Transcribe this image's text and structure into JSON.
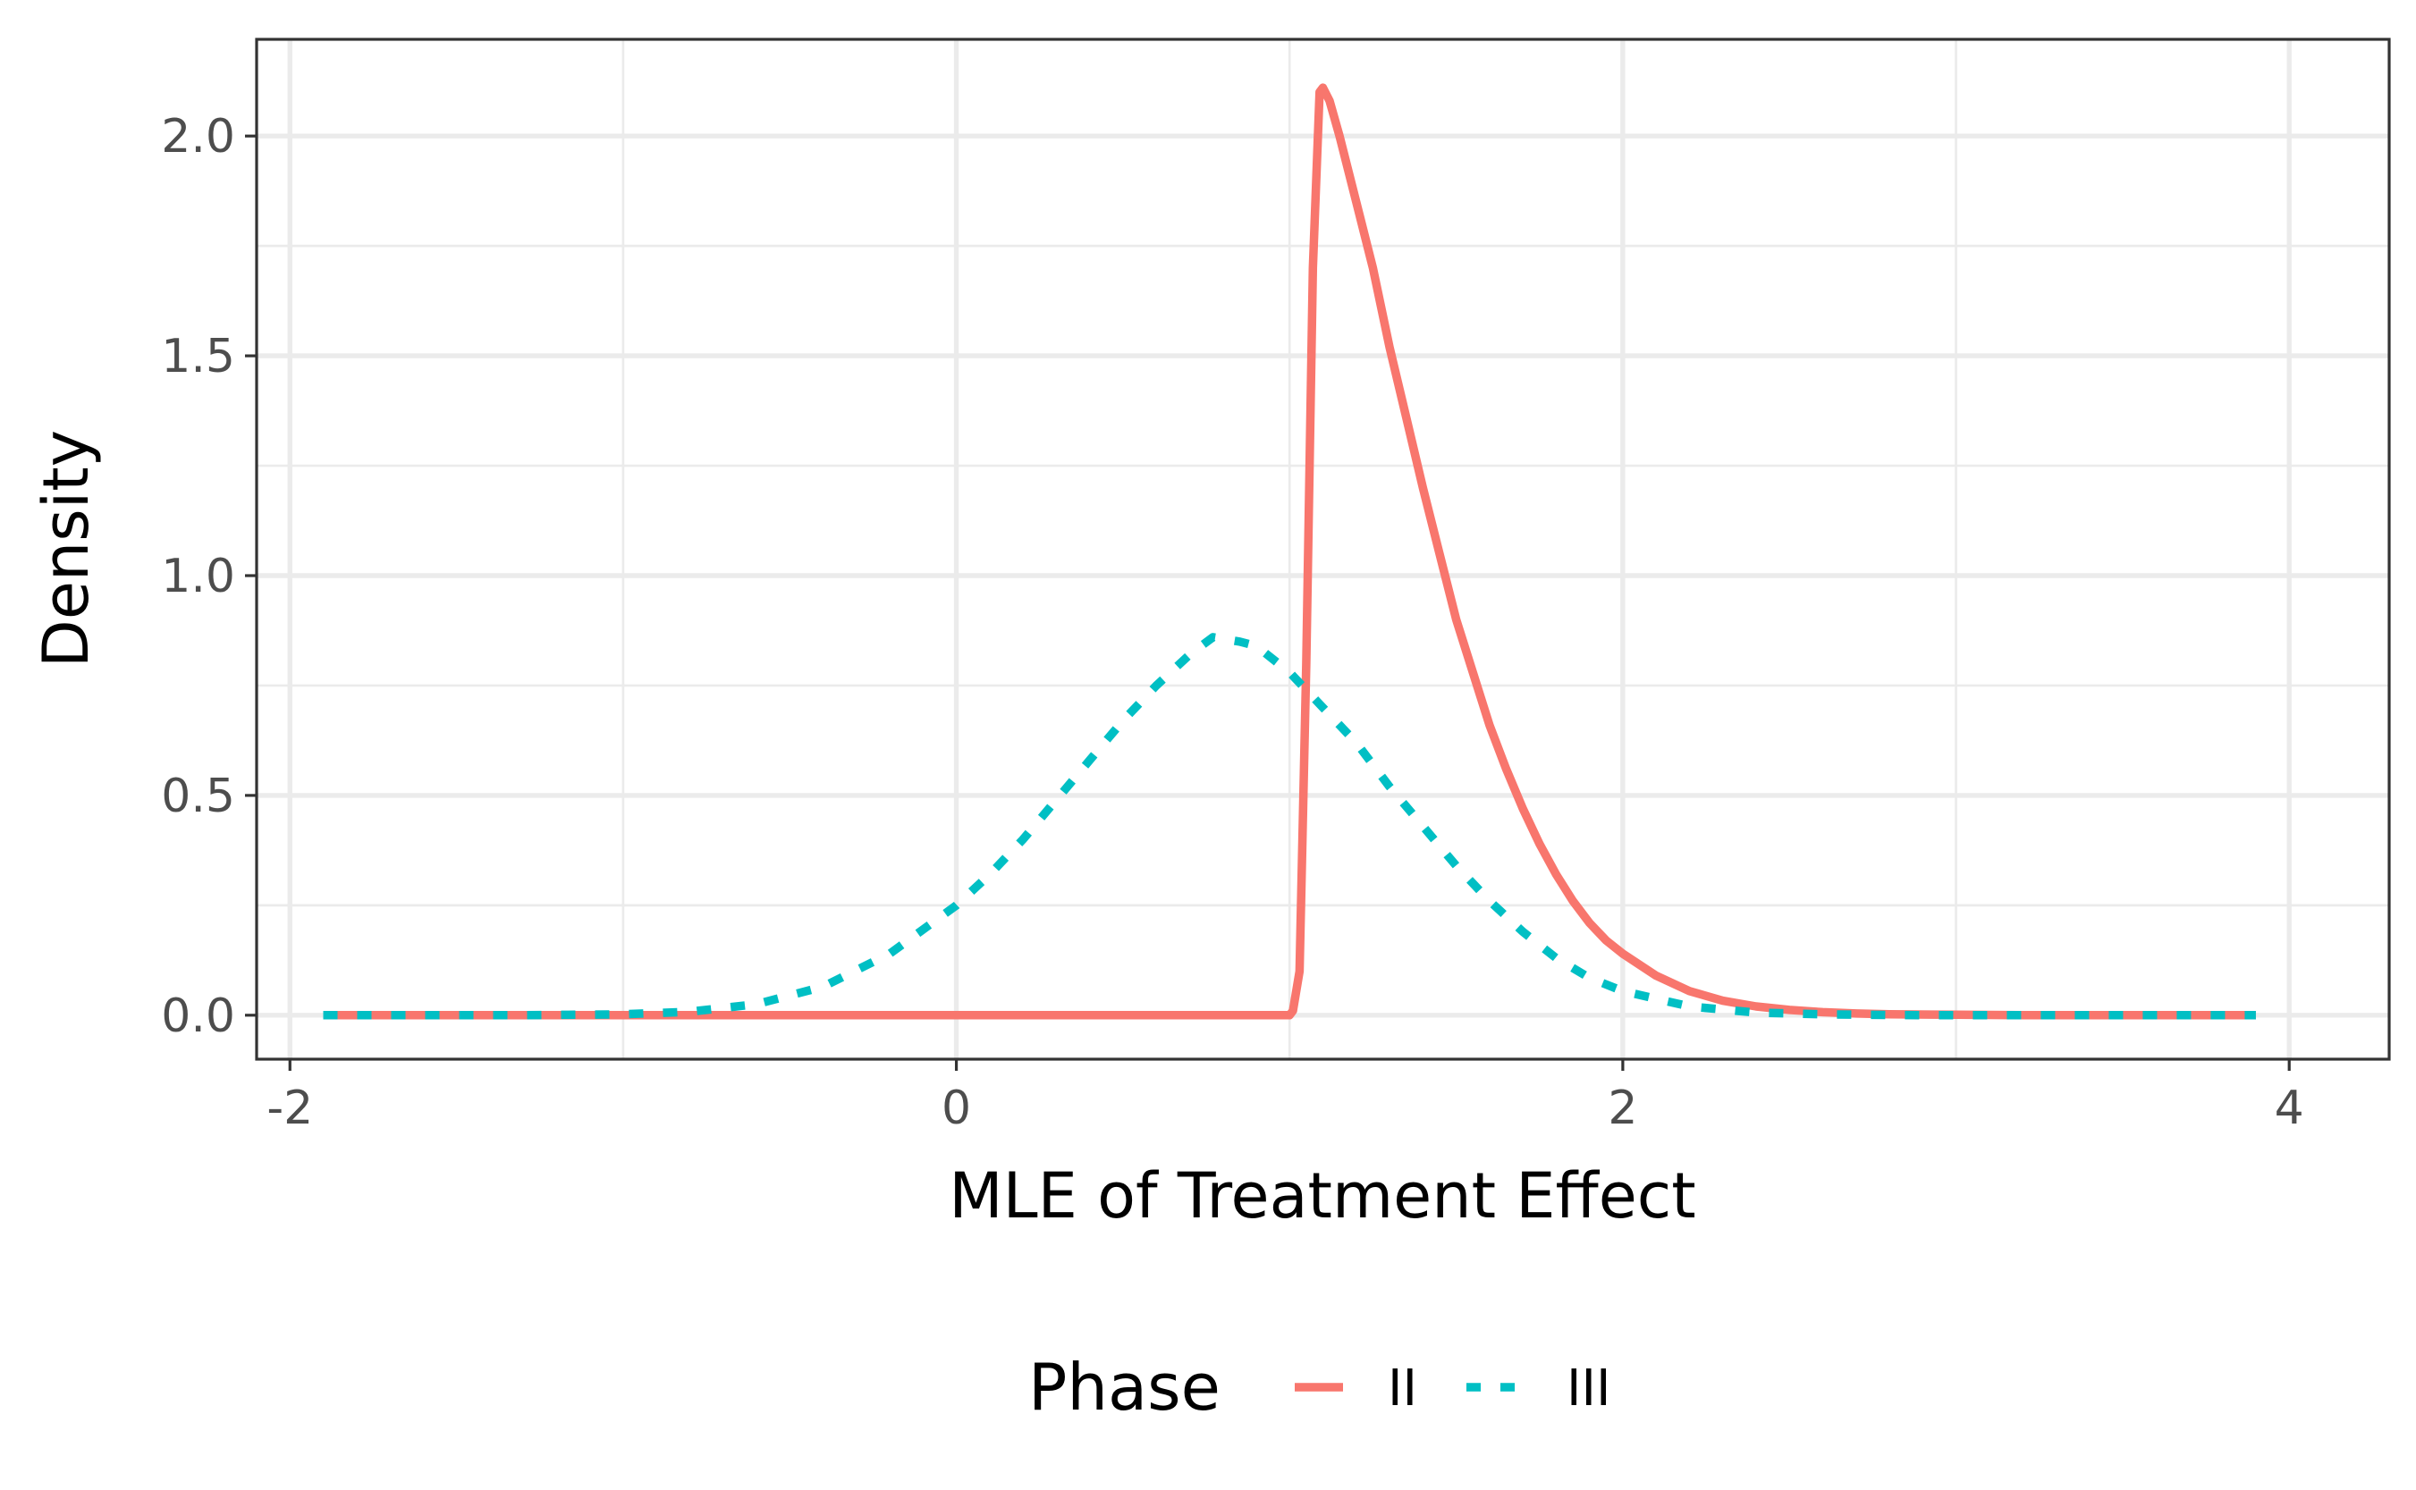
{
  "chart_data": {
    "type": "line",
    "title": "",
    "xlabel": "MLE of Treatment Effect",
    "ylabel": "Density",
    "xlim": [
      -2.1,
      4.3
    ],
    "ylim": [
      -0.1,
      2.22
    ],
    "x_ticks": [
      -2,
      0,
      2,
      4
    ],
    "x_tick_labels": [
      "-2",
      "0",
      "2",
      "4"
    ],
    "x_minor_ticks": [
      -1,
      1,
      3
    ],
    "y_ticks": [
      0.0,
      0.5,
      1.0,
      1.5,
      2.0
    ],
    "y_tick_labels": [
      "0.0",
      "0.5",
      "1.0",
      "1.5",
      "2.0"
    ],
    "y_minor_ticks": [
      0.25,
      0.75,
      1.25,
      1.75
    ],
    "grid": true,
    "legend": {
      "title": "Phase",
      "position": "bottom"
    },
    "series": [
      {
        "name": "II",
        "color": "#F8766D",
        "linetype": "solid",
        "x": [
          -1.9,
          -1.0,
          0.0,
          0.9,
          1.0,
          1.01,
          1.03,
          1.05,
          1.07,
          1.09,
          1.1,
          1.12,
          1.15,
          1.2,
          1.25,
          1.3,
          1.35,
          1.4,
          1.45,
          1.5,
          1.55,
          1.6,
          1.65,
          1.7,
          1.75,
          1.8,
          1.85,
          1.9,
          1.95,
          2.0,
          2.1,
          2.2,
          2.3,
          2.4,
          2.5,
          2.6,
          2.7,
          2.8,
          3.0,
          3.2,
          3.5,
          3.9
        ],
        "y": [
          0.0,
          0.0,
          0.0,
          0.0,
          0.0,
          0.01,
          0.1,
          0.8,
          1.7,
          2.1,
          2.11,
          2.08,
          2.0,
          1.85,
          1.7,
          1.52,
          1.36,
          1.2,
          1.05,
          0.9,
          0.78,
          0.66,
          0.56,
          0.47,
          0.39,
          0.32,
          0.26,
          0.21,
          0.17,
          0.14,
          0.09,
          0.055,
          0.033,
          0.02,
          0.012,
          0.007,
          0.004,
          0.002,
          0.001,
          0.0,
          0.0,
          0.0
        ]
      },
      {
        "name": "III",
        "color": "#00BFC4",
        "linetype": "dashed",
        "x": [
          -1.9,
          -1.6,
          -1.3,
          -1.0,
          -0.8,
          -0.6,
          -0.4,
          -0.2,
          0.0,
          0.1,
          0.2,
          0.3,
          0.4,
          0.5,
          0.6,
          0.7,
          0.77,
          0.85,
          0.9,
          1.0,
          1.1,
          1.2,
          1.3,
          1.4,
          1.5,
          1.6,
          1.7,
          1.8,
          1.9,
          2.0,
          2.2,
          2.4,
          2.6,
          2.8,
          3.0,
          3.3,
          3.6,
          3.9
        ],
        "y": [
          0.0,
          0.0,
          0.0,
          0.002,
          0.008,
          0.025,
          0.065,
          0.14,
          0.25,
          0.32,
          0.4,
          0.49,
          0.58,
          0.67,
          0.75,
          0.82,
          0.86,
          0.85,
          0.84,
          0.78,
          0.7,
          0.62,
          0.52,
          0.43,
          0.34,
          0.26,
          0.19,
          0.13,
          0.085,
          0.055,
          0.02,
          0.006,
          0.002,
          0.0005,
          0.0,
          0.0,
          0.0,
          0.0
        ]
      }
    ]
  }
}
